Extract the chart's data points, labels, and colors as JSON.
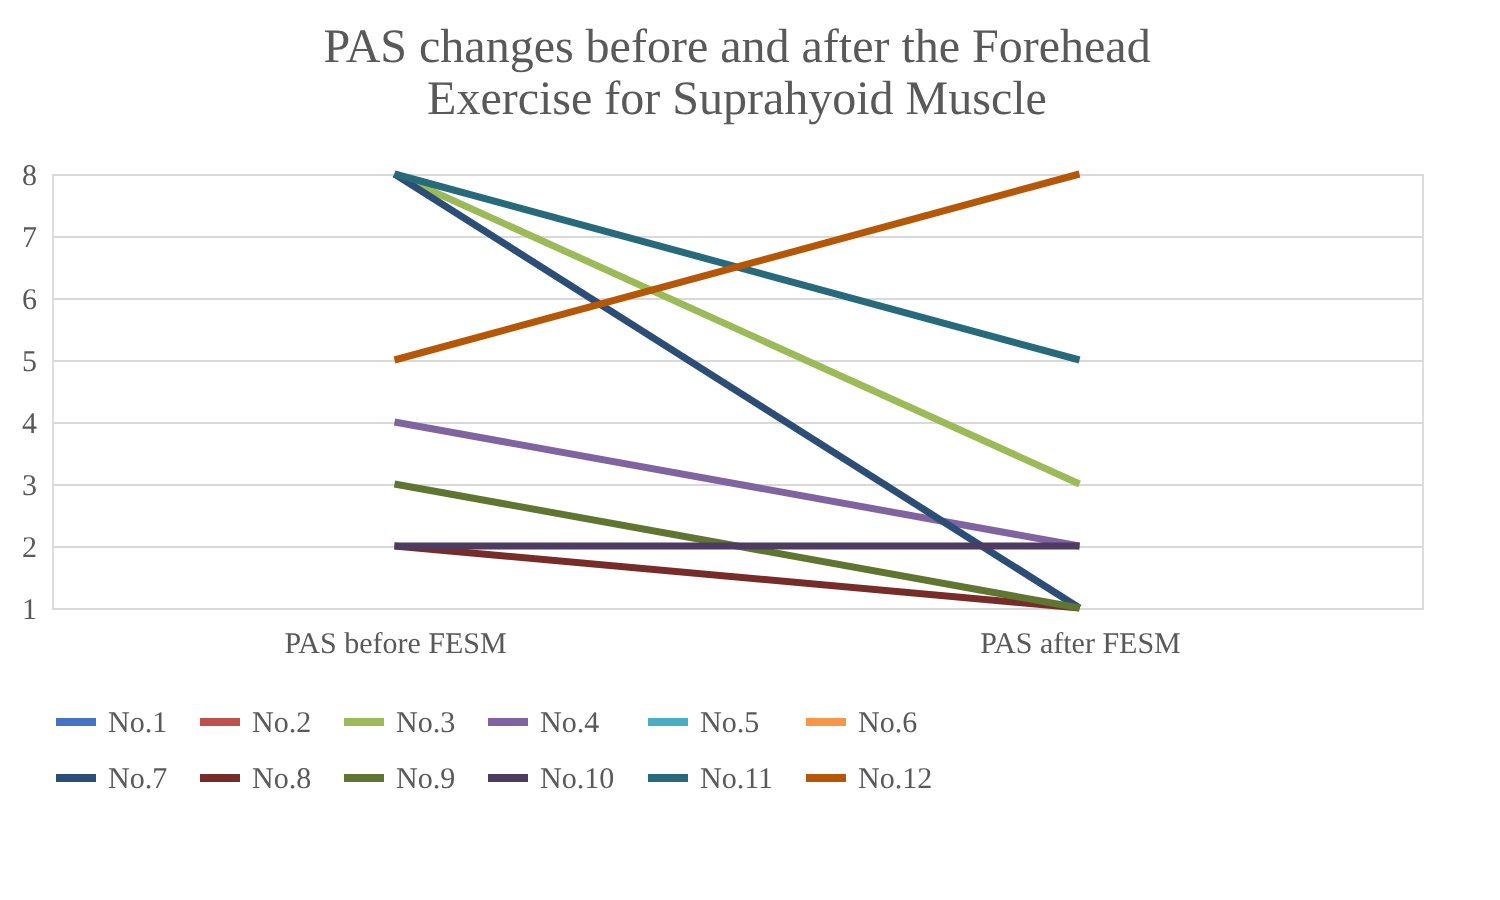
{
  "chart_data": {
    "type": "line",
    "title": [
      "PAS changes before and after the Forehead",
      "Exercise for Suprahyoid Muscle"
    ],
    "categories": [
      "PAS before FESM",
      "PAS after FESM"
    ],
    "series": [
      {
        "name": "No.1",
        "color": "#4472c4",
        "values": [
          null,
          null
        ]
      },
      {
        "name": "No.2",
        "color": "#c0504d",
        "values": [
          null,
          null
        ]
      },
      {
        "name": "No.3",
        "color": "#9bbb59",
        "values": [
          8,
          3
        ]
      },
      {
        "name": "No.4",
        "color": "#8064a2",
        "values": [
          4,
          2
        ]
      },
      {
        "name": "No.5",
        "color": "#4bacc6",
        "values": [
          null,
          null
        ]
      },
      {
        "name": "No.6",
        "color": "#f79646",
        "values": [
          null,
          null
        ]
      },
      {
        "name": "No.7",
        "color": "#2c4d75",
        "values": [
          8,
          1
        ]
      },
      {
        "name": "No.8",
        "color": "#772c2a",
        "values": [
          2,
          1
        ]
      },
      {
        "name": "No.9",
        "color": "#5f7530",
        "values": [
          3,
          1
        ]
      },
      {
        "name": "No.10",
        "color": "#4d3b62",
        "values": [
          2,
          2
        ]
      },
      {
        "name": "No.11",
        "color": "#276a7c",
        "values": [
          8,
          5
        ]
      },
      {
        "name": "No.12",
        "color": "#b65708",
        "values": [
          5,
          8
        ]
      }
    ],
    "ylim": [
      1,
      8
    ],
    "yticks": [
      1,
      2,
      3,
      4,
      5,
      6,
      7,
      8
    ],
    "grid": "y",
    "legend": "bottom",
    "marker": "none",
    "line_style": "solid"
  }
}
